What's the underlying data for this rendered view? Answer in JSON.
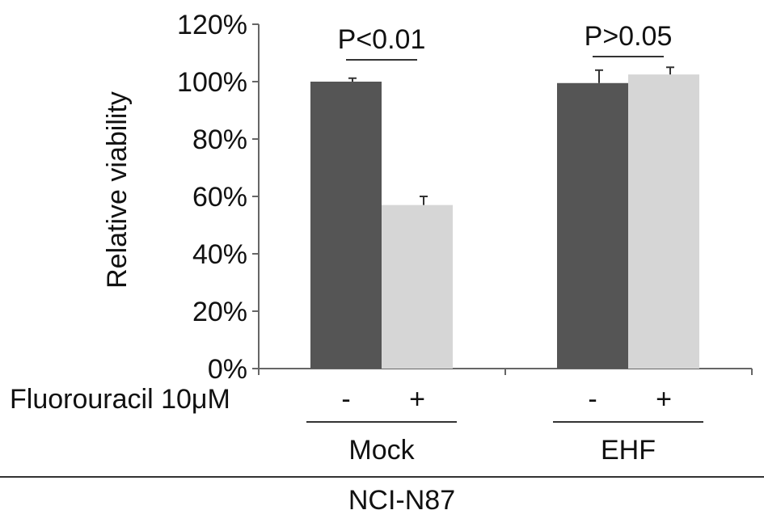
{
  "chart_data": {
    "type": "bar",
    "ylabel": "Relative viability",
    "ylim": [
      0,
      120
    ],
    "y_unit": "%",
    "y_ticks": [
      "0%",
      "20%",
      "40%",
      "60%",
      "80%",
      "100%",
      "120%"
    ],
    "grid": false,
    "legend": "none",
    "treatment_label": "Fluorouracil 10μM",
    "cell_line": "NCI-N87",
    "groups": [
      {
        "name": "Mock",
        "significance": "P<0.01",
        "bars": [
          {
            "condition": "-",
            "value": 100,
            "error": 1.2
          },
          {
            "condition": "+",
            "value": 57,
            "error": 3
          }
        ]
      },
      {
        "name": "EHF",
        "significance": "P>0.05",
        "bars": [
          {
            "condition": "-",
            "value": 99.5,
            "error": 4.5
          },
          {
            "condition": "+",
            "value": 102.5,
            "error": 2.5
          }
        ]
      }
    ],
    "colors": {
      "minus": "#555555",
      "plus": "#d6d6d6",
      "axis": "#666666",
      "text": "#111111"
    }
  }
}
